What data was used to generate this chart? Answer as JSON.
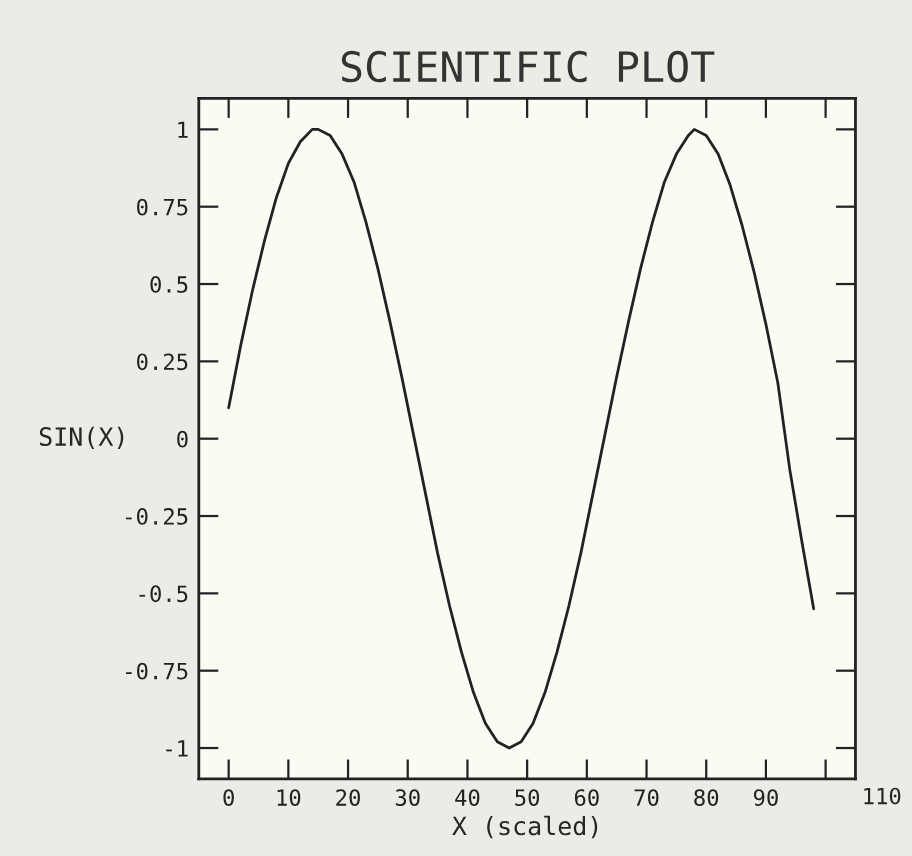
{
  "chart_data": {
    "type": "line",
    "title": "SCIENTIFIC PLOT",
    "xlabel": "X (scaled)",
    "ylabel": "SIN(X)",
    "x": [
      0,
      2,
      4,
      6,
      8,
      10,
      12,
      14,
      15,
      17,
      19,
      21,
      23,
      25,
      27,
      29,
      31,
      33,
      35,
      37,
      39,
      41,
      43,
      45,
      47,
      49,
      51,
      53,
      55,
      57,
      59,
      61,
      63,
      65,
      67,
      69,
      71,
      73,
      75,
      77,
      78,
      80,
      82,
      84,
      86,
      88,
      90,
      92,
      94,
      96,
      98
    ],
    "series": [
      {
        "color": "#222222",
        "values": [
          0.1,
          0.3,
          0.48,
          0.64,
          0.78,
          0.89,
          0.96,
          1.0,
          1.0,
          0.98,
          0.92,
          0.83,
          0.7,
          0.55,
          0.38,
          0.2,
          0.01,
          -0.18,
          -0.37,
          -0.54,
          -0.69,
          -0.82,
          -0.92,
          -0.98,
          -1.0,
          -0.98,
          -0.92,
          -0.82,
          -0.69,
          -0.54,
          -0.37,
          -0.18,
          0.01,
          0.2,
          0.38,
          0.55,
          0.7,
          0.83,
          0.92,
          0.98,
          1.0,
          0.98,
          0.92,
          0.82,
          0.69,
          0.54,
          0.37,
          0.18,
          -0.1,
          -0.33,
          -0.55
        ]
      }
    ],
    "xlim": [
      -5,
      105
    ],
    "xticks": [
      0,
      10,
      20,
      30,
      40,
      50,
      60,
      70,
      80,
      90,
      {
        "value": 100,
        "label": null
      }
    ],
    "ylim": [
      -1.1,
      1.1
    ],
    "yticks": [
      -1,
      -0.75,
      -0.5,
      -0.25,
      0,
      0.25,
      0.5,
      0.75,
      1
    ],
    "annotations": [
      "110"
    ],
    "grid": false,
    "legend": false,
    "marker": "none",
    "line_style": "solid"
  }
}
